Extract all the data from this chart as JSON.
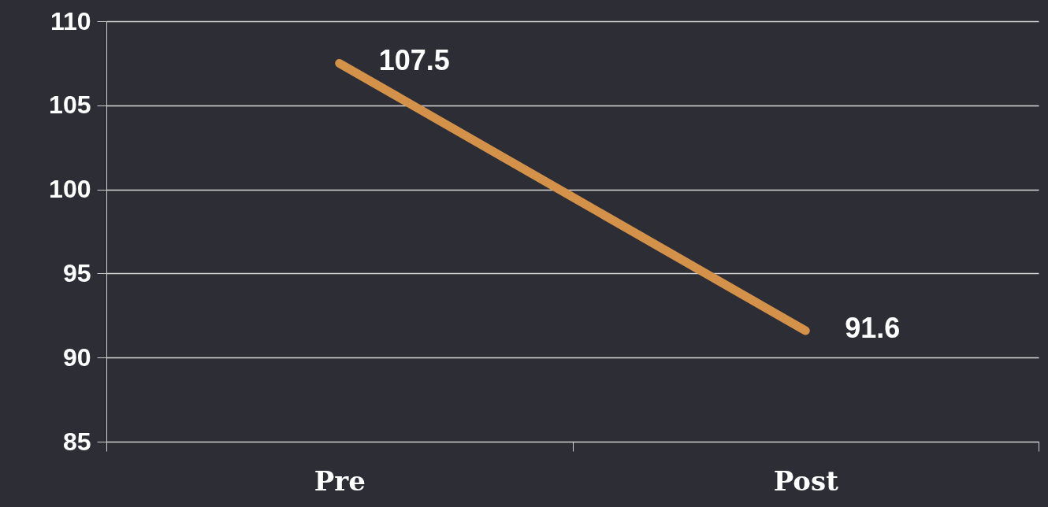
{
  "chart_data": {
    "type": "line",
    "categories": [
      "Pre",
      "Post"
    ],
    "series": [
      {
        "color": "#d4914a",
        "values": [
          107.5,
          91.6
        ]
      }
    ],
    "ylim": [
      85,
      110
    ],
    "yticks": [
      85,
      90,
      95,
      100,
      105,
      110
    ],
    "grid": "y",
    "data_labels": true,
    "marker": "none",
    "line_style": "solid"
  }
}
